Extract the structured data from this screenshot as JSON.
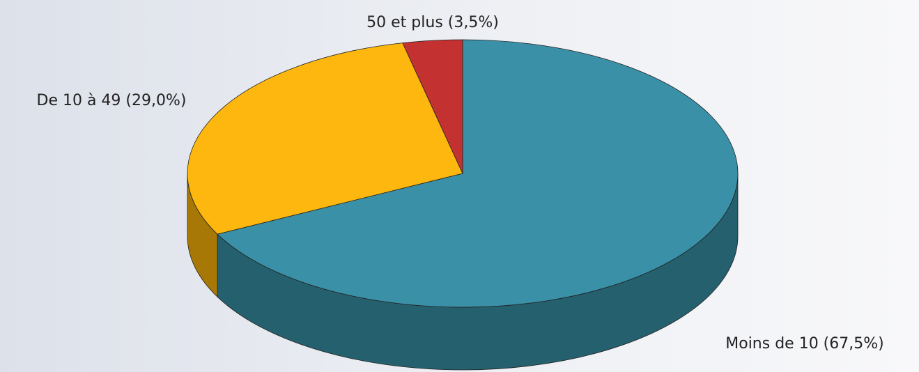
{
  "chart_data": {
    "type": "pie",
    "values": [
      67.5,
      29.0,
      3.5
    ],
    "value_labels": [
      "Moins de 10 (67,5%)",
      "De 10 à 49 (29,0%)",
      "50 et plus (3,5%)"
    ],
    "colors": [
      "#3a90a7",
      "#fdb70f",
      "#c43131"
    ],
    "side_colors": [
      "#25606e",
      "#a87806",
      "#8a2020"
    ]
  }
}
